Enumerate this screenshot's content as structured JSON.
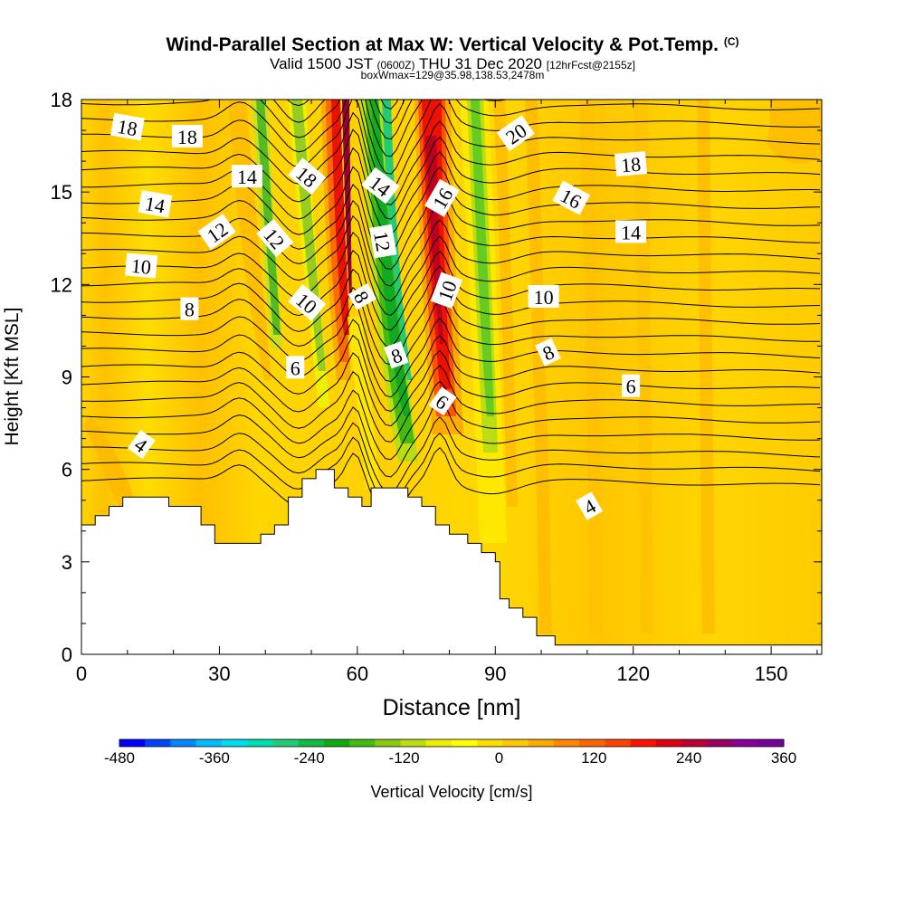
{
  "header": {
    "title": "Wind-Parallel Section at Max W: Vertical Velocity & Pot.Temp.",
    "title_mark": "(C)",
    "valid_prefix": "Valid 1500 JST",
    "valid_utc": "(0600Z)",
    "valid_date": "THU 31 Dec 2020",
    "forecast": "[12hrFcst@2155z]",
    "box_info": "boxWmax=129@35.98,138.53,2478m"
  },
  "chart_data": {
    "type": "heatmap",
    "xlabel": "Distance [nm]",
    "ylabel": "Height [Kft MSL]",
    "xlim": [
      0,
      161
    ],
    "ylim": [
      0,
      18
    ],
    "xticks": [
      "0",
      "30",
      "60",
      "90",
      "120",
      "150"
    ],
    "yticks": [
      "0",
      "3",
      "6",
      "9",
      "12",
      "15",
      "18"
    ],
    "contour_field": "potential temperature",
    "contour_labels": [
      {
        "text": "18",
        "x": 10,
        "y": 17.1,
        "rot": 10
      },
      {
        "text": "18",
        "x": 23,
        "y": 16.8,
        "rot": 0
      },
      {
        "text": "14",
        "x": 36,
        "y": 15.5,
        "rot": 0
      },
      {
        "text": "18",
        "x": 49,
        "y": 15.5,
        "rot": 40
      },
      {
        "text": "14",
        "x": 65,
        "y": 15.2,
        "rot": 38
      },
      {
        "text": "16",
        "x": 78.5,
        "y": 14.8,
        "rot": -60
      },
      {
        "text": "20",
        "x": 94.5,
        "y": 16.9,
        "rot": -35
      },
      {
        "text": "18",
        "x": 119.5,
        "y": 15.9,
        "rot": -5
      },
      {
        "text": "16",
        "x": 106.5,
        "y": 14.8,
        "rot": 28
      },
      {
        "text": "14",
        "x": 16,
        "y": 14.6,
        "rot": 10
      },
      {
        "text": "12",
        "x": 29.5,
        "y": 13.7,
        "rot": -35
      },
      {
        "text": "12",
        "x": 42,
        "y": 13.5,
        "rot": 50
      },
      {
        "text": "12",
        "x": 65.5,
        "y": 13.4,
        "rot": 80
      },
      {
        "text": "14",
        "x": 119.5,
        "y": 13.7,
        "rot": 0
      },
      {
        "text": "10",
        "x": 13,
        "y": 12.6,
        "rot": 5
      },
      {
        "text": "10",
        "x": 49,
        "y": 11.4,
        "rot": 40
      },
      {
        "text": "8",
        "x": 61,
        "y": 11.6,
        "rot": 60
      },
      {
        "text": "10",
        "x": 79.5,
        "y": 11.8,
        "rot": -70
      },
      {
        "text": "10",
        "x": 100.5,
        "y": 11.6,
        "rot": 0
      },
      {
        "text": "8",
        "x": 23.5,
        "y": 11.2,
        "rot": 0
      },
      {
        "text": "8",
        "x": 101.5,
        "y": 9.8,
        "rot": -25
      },
      {
        "text": "8",
        "x": 68.5,
        "y": 9.7,
        "rot": -20
      },
      {
        "text": "6",
        "x": 46.5,
        "y": 9.3,
        "rot": 0
      },
      {
        "text": "6",
        "x": 119.5,
        "y": 8.7,
        "rot": 0
      },
      {
        "text": "6",
        "x": 78.5,
        "y": 8.2,
        "rot": 35
      },
      {
        "text": "4",
        "x": 13,
        "y": 6.8,
        "rot": 35
      },
      {
        "text": "4",
        "x": 110.5,
        "y": 4.8,
        "rot": -30
      }
    ],
    "terrain_profile": [
      [
        0,
        4.2
      ],
      [
        3,
        4.2
      ],
      [
        3,
        4.5
      ],
      [
        6,
        4.5
      ],
      [
        6,
        4.8
      ],
      [
        9,
        4.8
      ],
      [
        9,
        5.1
      ],
      [
        19,
        5.1
      ],
      [
        19,
        4.8
      ],
      [
        26,
        4.8
      ],
      [
        26,
        4.2
      ],
      [
        29,
        4.2
      ],
      [
        29,
        3.6
      ],
      [
        39,
        3.6
      ],
      [
        39,
        3.9
      ],
      [
        42,
        3.9
      ],
      [
        42,
        4.2
      ],
      [
        45,
        4.2
      ],
      [
        45,
        5.1
      ],
      [
        48,
        5.1
      ],
      [
        48,
        5.7
      ],
      [
        51,
        5.7
      ],
      [
        51,
        6.0
      ],
      [
        55,
        6.0
      ],
      [
        55,
        5.4
      ],
      [
        58,
        5.4
      ],
      [
        58,
        5.1
      ],
      [
        61,
        5.1
      ],
      [
        61,
        4.8
      ],
      [
        63,
        4.8
      ],
      [
        63,
        5.4
      ],
      [
        71,
        5.4
      ],
      [
        71,
        5.1
      ],
      [
        74,
        5.1
      ],
      [
        74,
        4.8
      ],
      [
        77,
        4.8
      ],
      [
        77,
        4.2
      ],
      [
        80,
        4.2
      ],
      [
        80,
        3.9
      ],
      [
        84,
        3.9
      ],
      [
        84,
        3.6
      ],
      [
        87,
        3.6
      ],
      [
        87,
        3.3
      ],
      [
        90,
        3.3
      ],
      [
        90,
        3.0
      ],
      [
        91,
        3.0
      ],
      [
        91,
        1.8
      ],
      [
        93,
        1.8
      ],
      [
        93,
        1.5
      ],
      [
        96,
        1.5
      ],
      [
        96,
        1.2
      ],
      [
        99,
        1.2
      ],
      [
        99,
        0.6
      ],
      [
        103,
        0.6
      ],
      [
        103,
        0.3
      ],
      [
        161,
        0.3
      ]
    ],
    "colorbar": {
      "label": "Vertical Velocity [cm/s]",
      "ticks": [
        "-480",
        "-360",
        "-240",
        "-120",
        "0",
        "120",
        "240",
        "360"
      ],
      "colors": [
        "#0000ff",
        "#0044ff",
        "#0088ff",
        "#00bbff",
        "#00ddee",
        "#00ddb0",
        "#22cc77",
        "#11bb44",
        "#11aa11",
        "#44bb11",
        "#88cc11",
        "#bbdd11",
        "#eeee00",
        "#ffff00",
        "#ffdd00",
        "#ffc800",
        "#ffaa00",
        "#ff8800",
        "#ff6600",
        "#ff4400",
        "#ff1100",
        "#dd0011",
        "#bb0033",
        "#990066",
        "#880099",
        "#770099"
      ]
    }
  }
}
